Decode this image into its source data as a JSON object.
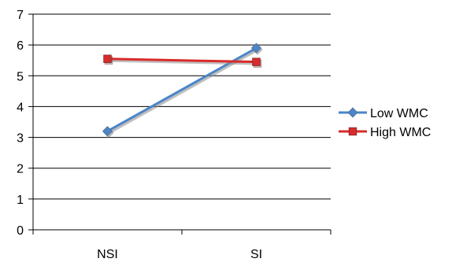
{
  "chart_data": {
    "type": "line",
    "categories": [
      "NSI",
      "SI"
    ],
    "series": [
      {
        "name": "Low WMC",
        "values": [
          3.2,
          5.9
        ],
        "color": "#4a86c8",
        "marker": "diamond"
      },
      {
        "name": "High WMC",
        "values": [
          5.55,
          5.45
        ],
        "color": "#d92b2b",
        "marker": "square"
      }
    ],
    "title": "",
    "xlabel": "",
    "ylabel": "",
    "ylim": [
      0,
      7
    ],
    "yticks": [
      0,
      1,
      2,
      3,
      4,
      5,
      6,
      7
    ],
    "grid": true,
    "legend": "right"
  }
}
